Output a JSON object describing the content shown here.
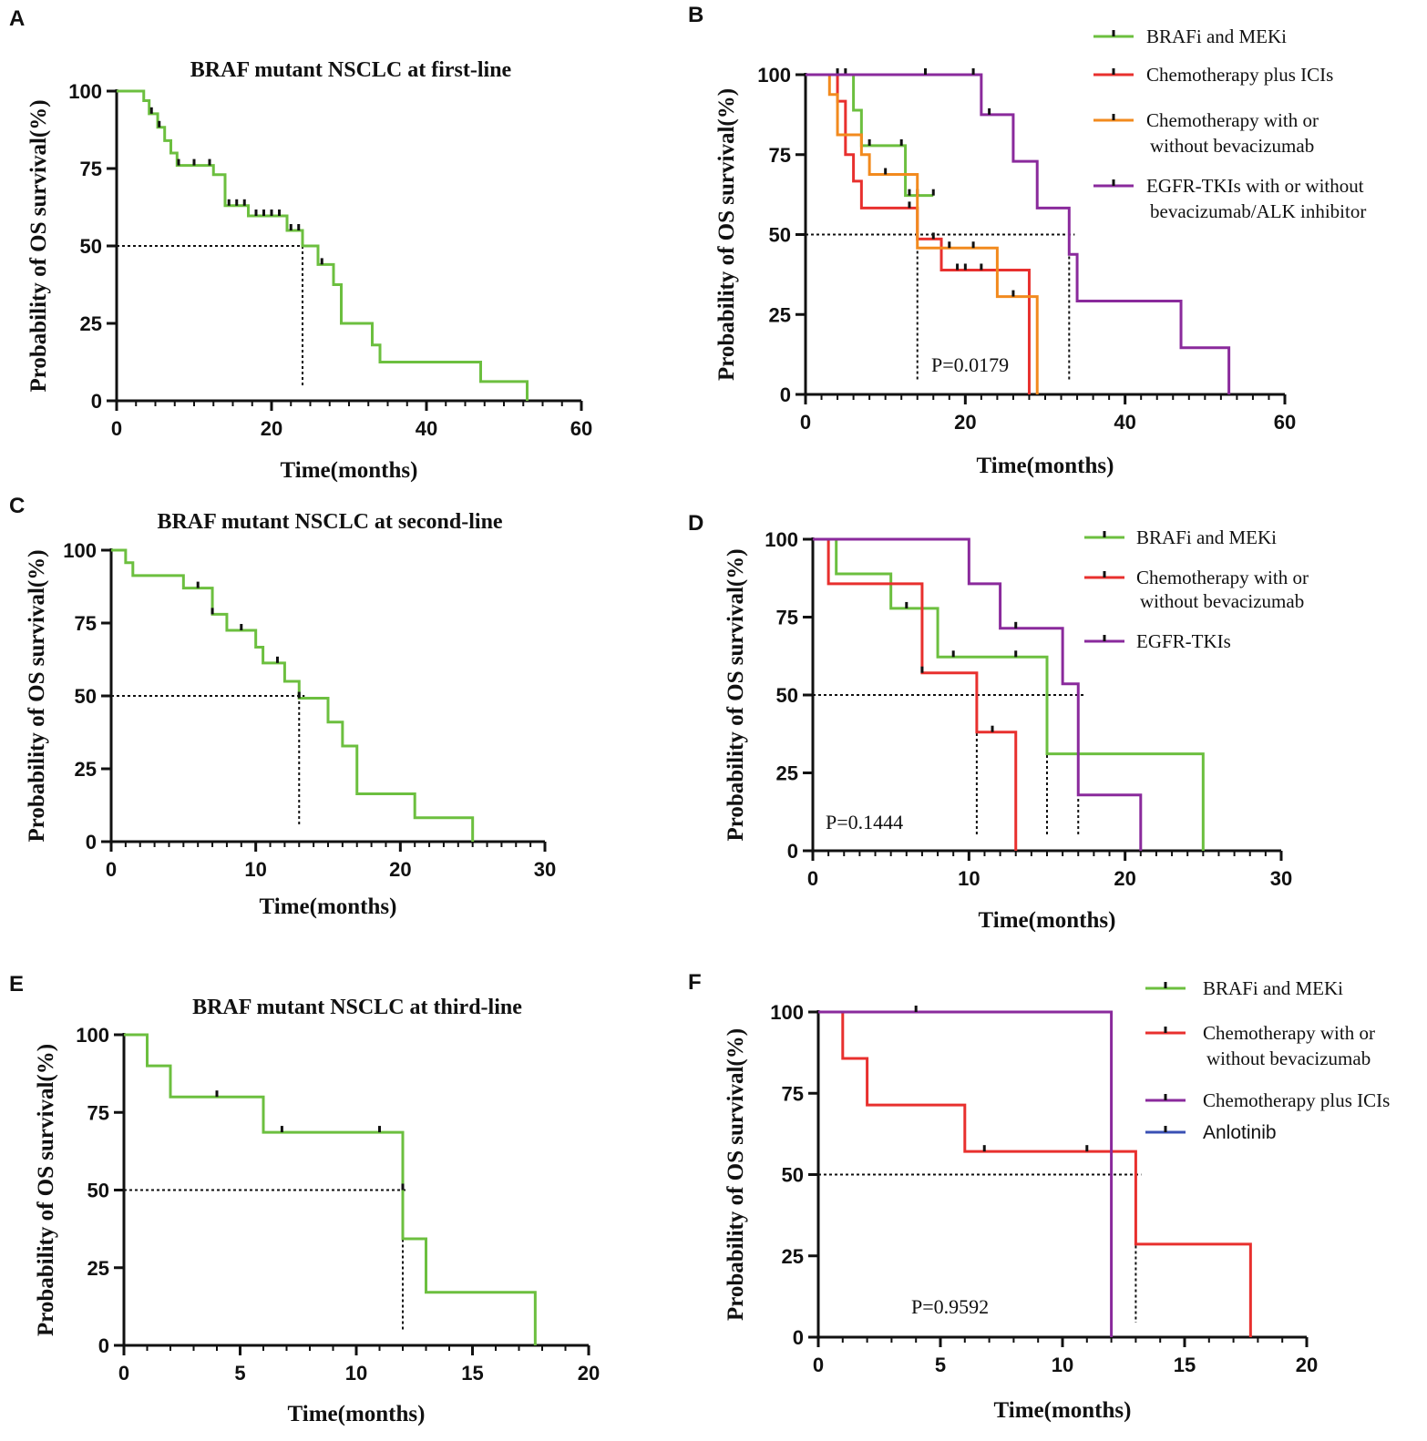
{
  "chart_data": [
    {
      "type": "line",
      "panel": "A",
      "title": "BRAF mutant NSCLC at first-line",
      "xlabel": "Time(months)",
      "ylabel": "Probability of OS survival(%)",
      "xlim": [
        0,
        60
      ],
      "ylim": [
        0,
        100
      ],
      "xticks": [
        0,
        20,
        40,
        60
      ],
      "yticks": [
        0,
        25,
        50,
        75,
        100
      ],
      "xminor": 2.5,
      "median_lines": [
        {
          "x": 24,
          "y": 50
        }
      ],
      "series": [
        {
          "name": "BRAF mutant NSCLC",
          "color": "#6cbf3f",
          "steps": [
            [
              0,
              100
            ],
            [
              3.5,
              96.9
            ],
            [
              4.2,
              92.7
            ],
            [
              5.3,
              88.3
            ],
            [
              6.2,
              84
            ],
            [
              7,
              80
            ],
            [
              7.8,
              76
            ],
            [
              12.5,
              73
            ],
            [
              14,
              63
            ],
            [
              17,
              59.7
            ],
            [
              22,
              55
            ],
            [
              24,
              50
            ],
            [
              26,
              44
            ],
            [
              28,
              37.5
            ],
            [
              29,
              25
            ],
            [
              33,
              18
            ],
            [
              34,
              12.5
            ],
            [
              47,
              6.2
            ],
            [
              53,
              0
            ]
          ],
          "end": 53,
          "censored": [
            [
              4.5,
              92.7
            ],
            [
              5.5,
              88.3
            ],
            [
              8,
              76
            ],
            [
              10,
              76
            ],
            [
              12,
              76
            ],
            [
              14.5,
              63
            ],
            [
              15.5,
              63
            ],
            [
              16.5,
              63
            ],
            [
              18,
              59.7
            ],
            [
              19,
              59.7
            ],
            [
              20,
              59.7
            ],
            [
              21,
              59.7
            ],
            [
              22.5,
              55
            ],
            [
              23.5,
              55
            ],
            [
              26.5,
              44
            ]
          ]
        }
      ]
    },
    {
      "type": "line",
      "panel": "B",
      "title": "",
      "xlabel": "Time(months)",
      "ylabel": "Probability of OS survival(%)",
      "xlim": [
        0,
        60
      ],
      "ylim": [
        0,
        100
      ],
      "xticks": [
        0,
        20,
        40,
        60
      ],
      "yticks": [
        0,
        25,
        50,
        75,
        100
      ],
      "xminor": 2,
      "p_value": "P=0.0179",
      "median_lines": [
        {
          "x": 14,
          "y": 50
        },
        {
          "x": 33,
          "y": 50
        }
      ],
      "legend": [
        {
          "label": "BRAFi and MEKi",
          "color": "#6cbf3f"
        },
        {
          "label": "Chemotherapy plus ICIs",
          "color": "#e8302e"
        },
        {
          "label": "Chemotherapy with or",
          "label2": "without bevacizumab",
          "color": "#f28a1e"
        },
        {
          "label": "EGFR-TKIs with or without",
          "label2": "bevacizumab/ALK inhibitor",
          "color": "#8a2a9c"
        }
      ],
      "series": [
        {
          "name": "BRAFi and MEKi",
          "color": "#6cbf3f",
          "steps": [
            [
              0,
              100
            ],
            [
              6,
              88.9
            ],
            [
              7,
              77.8
            ],
            [
              12.5,
              62.2
            ]
          ],
          "end": 16,
          "censored": [
            [
              4,
              100
            ],
            [
              5,
              100
            ],
            [
              8,
              77.8
            ],
            [
              12,
              77.8
            ],
            [
              13,
              62.2
            ],
            [
              14,
              62.2
            ],
            [
              16,
              62.2
            ]
          ]
        },
        {
          "name": "Chemotherapy plus ICIs",
          "color": "#e8302e",
          "steps": [
            [
              0,
              100
            ],
            [
              4,
              91.7
            ],
            [
              5,
              75
            ],
            [
              6,
              66.7
            ],
            [
              7,
              58.3
            ],
            [
              14,
              48.6
            ],
            [
              17,
              38.9
            ],
            [
              28,
              0
            ]
          ],
          "end": 28,
          "censored": [
            [
              13,
              58.3
            ],
            [
              16,
              48.6
            ],
            [
              19,
              38.9
            ],
            [
              20,
              38.9
            ],
            [
              22,
              38.9
            ]
          ]
        },
        {
          "name": "Chemotherapy with or without bevacizumab",
          "color": "#f28a1e",
          "steps": [
            [
              0,
              100
            ],
            [
              3,
              93.8
            ],
            [
              4,
              81.2
            ],
            [
              7,
              75
            ],
            [
              8,
              68.8
            ],
            [
              14,
              45.8
            ],
            [
              24,
              30.6
            ],
            [
              29,
              0
            ]
          ],
          "end": 29,
          "censored": [
            [
              10,
              68.8
            ],
            [
              18,
              45.8
            ],
            [
              21,
              45.8
            ],
            [
              26,
              30.6
            ]
          ]
        },
        {
          "name": "EGFR-TKIs with or without bevacizumab/ALK inhibitor",
          "color": "#8a2a9c",
          "steps": [
            [
              0,
              100
            ],
            [
              22,
              87.5
            ],
            [
              26,
              72.9
            ],
            [
              29,
              58.3
            ],
            [
              33,
              43.8
            ],
            [
              34,
              29.2
            ],
            [
              47,
              14.6
            ],
            [
              53,
              0
            ]
          ],
          "end": 53,
          "censored": [
            [
              15,
              100
            ],
            [
              21,
              100
            ],
            [
              23,
              87.5
            ]
          ]
        }
      ]
    },
    {
      "type": "line",
      "panel": "C",
      "title": "BRAF mutant NSCLC at second-line",
      "xlabel": "Time(months)",
      "ylabel": "Probability of OS survival(%)",
      "xlim": [
        0,
        30
      ],
      "ylim": [
        0,
        100
      ],
      "xticks": [
        0,
        10,
        20,
        30
      ],
      "yticks": [
        0,
        25,
        50,
        75,
        100
      ],
      "xminor": 1,
      "median_lines": [
        {
          "x": 13,
          "y": 50
        }
      ],
      "series": [
        {
          "name": "BRAF mutant NSCLC",
          "color": "#6cbf3f",
          "steps": [
            [
              0,
              100
            ],
            [
              1,
              95.7
            ],
            [
              1.5,
              91.3
            ],
            [
              5,
              87
            ],
            [
              7,
              78
            ],
            [
              8,
              72.5
            ],
            [
              10,
              66.7
            ],
            [
              10.5,
              61.3
            ],
            [
              12,
              55
            ],
            [
              13,
              49.2
            ],
            [
              15,
              41
            ],
            [
              16,
              32.8
            ],
            [
              17,
              16.4
            ],
            [
              21,
              8.2
            ],
            [
              25,
              0
            ]
          ],
          "end": 25,
          "censored": [
            [
              6,
              87
            ],
            [
              7,
              78
            ],
            [
              9,
              72.5
            ],
            [
              11.5,
              61.3
            ],
            [
              13,
              49.2
            ]
          ]
        }
      ]
    },
    {
      "type": "line",
      "panel": "D",
      "title": "",
      "xlabel": "Time(months)",
      "ylabel": "Probability of OS survival(%)",
      "xlim": [
        0,
        30
      ],
      "ylim": [
        0,
        100
      ],
      "xticks": [
        0,
        10,
        20,
        30
      ],
      "yticks": [
        0,
        25,
        50,
        75,
        100
      ],
      "xminor": 1,
      "p_value": "P=0.1444",
      "median_lines": [
        {
          "x": 10.5,
          "y": 50
        },
        {
          "x": 15,
          "y": 50
        },
        {
          "x": 17,
          "y": 50
        }
      ],
      "legend": [
        {
          "label": "BRAFi and MEKi",
          "color": "#6cbf3f"
        },
        {
          "label": "Chemotherapy with or",
          "label2": "without bevacizumab",
          "color": "#e8302e"
        },
        {
          "label": "EGFR-TKIs",
          "color": "#8a2a9c"
        }
      ],
      "series": [
        {
          "name": "BRAFi and MEKi",
          "color": "#6cbf3f",
          "steps": [
            [
              0,
              100
            ],
            [
              1.5,
              88.9
            ],
            [
              5,
              77.8
            ],
            [
              8,
              62.2
            ],
            [
              15,
              31.1
            ],
            [
              25,
              0
            ]
          ],
          "end": 25,
          "censored": [
            [
              6,
              77.8
            ],
            [
              9,
              62.2
            ],
            [
              13,
              62.2
            ]
          ]
        },
        {
          "name": "Chemotherapy with or without bevacizumab",
          "color": "#e8302e",
          "steps": [
            [
              0,
              100
            ],
            [
              1,
              85.7
            ],
            [
              7,
              57.1
            ],
            [
              10.5,
              38.1
            ],
            [
              13,
              0
            ]
          ],
          "end": 13,
          "censored": [
            [
              7,
              57.1
            ],
            [
              11.5,
              38.1
            ]
          ]
        },
        {
          "name": "EGFR-TKIs",
          "color": "#8a2a9c",
          "steps": [
            [
              0,
              100
            ],
            [
              10,
              85.7
            ],
            [
              12,
              71.4
            ],
            [
              16,
              53.6
            ],
            [
              17,
              17.9
            ],
            [
              21,
              0
            ]
          ],
          "end": 21,
          "censored": [
            [
              13,
              71.4
            ]
          ]
        }
      ]
    },
    {
      "type": "line",
      "panel": "E",
      "title": "BRAF mutant NSCLC at third-line",
      "xlabel": "Time(months)",
      "ylabel": "Probability of OS survival(%)",
      "xlim": [
        0,
        20
      ],
      "ylim": [
        0,
        100
      ],
      "xticks": [
        0,
        5,
        10,
        15,
        20
      ],
      "yticks": [
        0,
        25,
        50,
        75,
        100
      ],
      "xminor": 1,
      "median_lines": [
        {
          "x": 12,
          "y": 50
        }
      ],
      "series": [
        {
          "name": "BRAF mutant NSCLC",
          "color": "#6cbf3f",
          "steps": [
            [
              0,
              100
            ],
            [
              1,
              90
            ],
            [
              2,
              80
            ],
            [
              6,
              68.6
            ],
            [
              12,
              34.3
            ],
            [
              13,
              17.1
            ],
            [
              17.7,
              0
            ]
          ],
          "end": 17.7,
          "censored": [
            [
              4,
              80
            ],
            [
              6.8,
              68.6
            ],
            [
              11,
              68.6
            ],
            [
              12,
              50
            ]
          ]
        }
      ]
    },
    {
      "type": "line",
      "panel": "F",
      "title": "",
      "xlabel": "Time(months)",
      "ylabel": "Probability of OS survival(%)",
      "xlim": [
        0,
        20
      ],
      "ylim": [
        0,
        100
      ],
      "xticks": [
        0,
        5,
        10,
        15,
        20
      ],
      "yticks": [
        0,
        25,
        50,
        75,
        100
      ],
      "xminor": 1,
      "p_value": "P=0.9592",
      "median_lines": [
        {
          "x": 12,
          "y": 50
        },
        {
          "x": 13,
          "y": 50
        }
      ],
      "legend": [
        {
          "label": "BRAFi and MEKi",
          "color": "#6cbf3f"
        },
        {
          "label": "Chemotherapy with or",
          "label2": "without bevacizumab",
          "color": "#e8302e"
        },
        {
          "label": "Chemotherapy plus ICIs",
          "color": "#8a2a9c"
        },
        {
          "label": "Anlotinib",
          "color": "#3a50b4",
          "sans": true
        }
      ],
      "series": [
        {
          "name": "BRAFi and MEKi",
          "color": "#6cbf3f",
          "steps": [
            [
              0,
              100
            ]
          ],
          "end": 4,
          "censored": []
        },
        {
          "name": "Chemotherapy with or without bevacizumab",
          "color": "#e8302e",
          "steps": [
            [
              0,
              100
            ],
            [
              1,
              85.7
            ],
            [
              2,
              71.4
            ],
            [
              6,
              57.1
            ],
            [
              13,
              28.6
            ],
            [
              17.7,
              0
            ]
          ],
          "end": 17.7,
          "censored": [
            [
              6.8,
              57.1
            ],
            [
              11,
              57.1
            ]
          ]
        },
        {
          "name": "Chemotherapy plus ICIs",
          "color": "#8a2a9c",
          "steps": [
            [
              0,
              100
            ],
            [
              12,
              0
            ]
          ],
          "end": 12,
          "censored": [
            [
              4,
              100
            ]
          ]
        },
        {
          "name": "Anlotinib",
          "color": "#3a50b4",
          "steps": [],
          "end": 0,
          "censored": []
        }
      ]
    }
  ]
}
